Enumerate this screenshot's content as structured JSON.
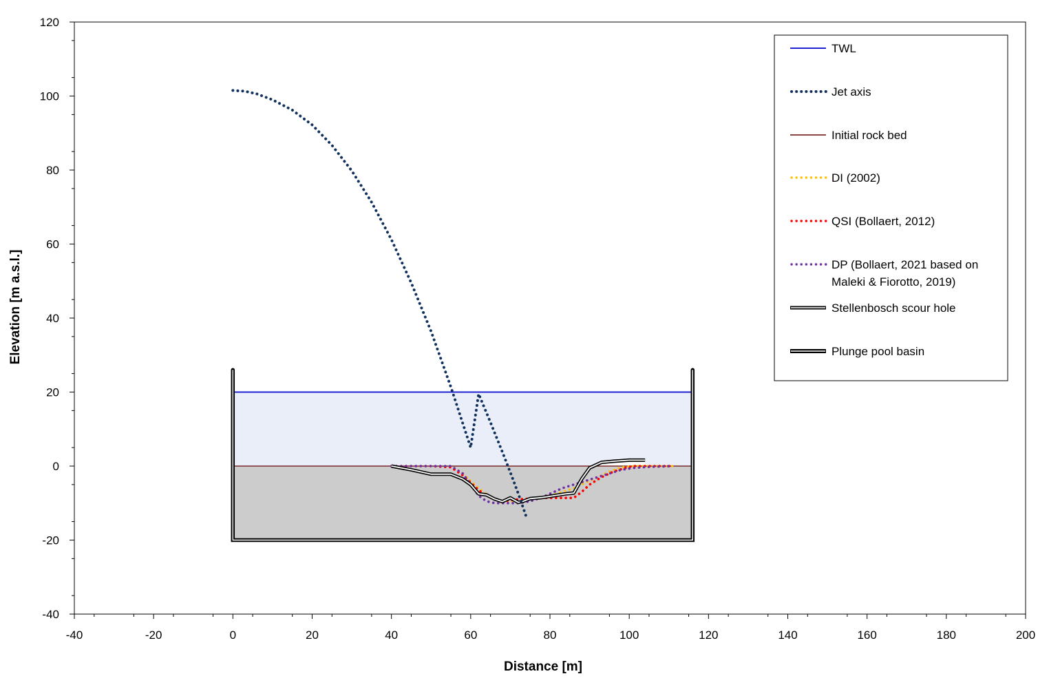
{
  "chart_data": {
    "type": "line",
    "xlabel": "Distance [m]",
    "ylabel": "Elevation [m a.s.l.]",
    "xlim": [
      -40,
      200
    ],
    "ylim": [
      -40,
      120
    ],
    "xticks": [
      -40,
      -20,
      0,
      20,
      40,
      60,
      80,
      100,
      120,
      140,
      160,
      180,
      200
    ],
    "yticks": [
      -40,
      -20,
      0,
      20,
      40,
      60,
      80,
      100,
      120
    ],
    "xtick_labels": [
      "-40",
      "-20",
      "0",
      "20",
      "40",
      "60",
      "80",
      "100",
      "120",
      "140",
      "160",
      "180",
      "200"
    ],
    "ytick_labels": [
      "-40",
      "-20",
      "0",
      "20",
      "40",
      "60",
      "80",
      "100",
      "120"
    ],
    "grid": false,
    "legend_position": "top-right",
    "legend": [
      {
        "key": "twl",
        "label": "TWL"
      },
      {
        "key": "jet",
        "label": "Jet axis"
      },
      {
        "key": "rock",
        "label": "Initial rock bed"
      },
      {
        "key": "di",
        "label": "DI (2002)"
      },
      {
        "key": "qsi",
        "label": "QSI (Bollaert, 2012)"
      },
      {
        "key": "dp",
        "label": "DP (Bollaert, 2021 based on",
        "label2": "Maleki & Fiorotto, 2019)"
      },
      {
        "key": "scour",
        "label": "Stellenbosch scour hole"
      },
      {
        "key": "basin",
        "label": "Plunge pool basin"
      }
    ],
    "colors": {
      "twl": "#0000cc",
      "jet": "#10305e",
      "rock": "#7a2a2a",
      "di": "#ffc000",
      "qsi": "#ff0000",
      "dp": "#7030a0",
      "scour": "#000000",
      "basin": "#000000",
      "water_fill": "#e9eef8",
      "rock_fill": "#cccccc"
    },
    "series": [
      {
        "key": "twl",
        "x": [
          0,
          116
        ],
        "y": [
          20,
          20
        ]
      },
      {
        "key": "jet",
        "x": [
          0,
          3,
          6,
          10,
          15,
          20,
          25,
          30,
          35,
          40,
          45,
          50,
          55,
          60,
          62,
          65,
          68,
          70,
          72,
          74
        ],
        "y": [
          101.5,
          101.3,
          100.6,
          99.0,
          96.2,
          92.2,
          86.7,
          79.8,
          71.3,
          61.2,
          49.5,
          36.4,
          21.4,
          5.0,
          19.5,
          11.8,
          3.8,
          -1.7,
          -7.4,
          -13.6
        ]
      },
      {
        "key": "rock",
        "x": [
          0,
          116
        ],
        "y": [
          0,
          0
        ]
      },
      {
        "key": "di",
        "x": [
          40,
          45,
          50,
          55,
          58,
          60,
          62,
          65,
          68,
          70,
          72,
          75,
          78,
          80,
          83,
          86,
          89,
          92,
          95,
          98,
          101,
          105,
          111
        ],
        "y": [
          0,
          0,
          0,
          -0.3,
          -2,
          -4,
          -6,
          -8.5,
          -9.5,
          -9.5,
          -9.2,
          -9,
          -8.5,
          -8,
          -7,
          -6,
          -4.5,
          -3,
          -1.5,
          -0.3,
          0,
          0,
          0
        ]
      },
      {
        "key": "qsi",
        "x": [
          40,
          45,
          50,
          55,
          58,
          60,
          62,
          64,
          66,
          68,
          70,
          72,
          75,
          78,
          80,
          83,
          86,
          88,
          90,
          93,
          96,
          99,
          101,
          105,
          111
        ],
        "y": [
          0,
          0,
          0,
          -0.3,
          -2.5,
          -4.5,
          -6.5,
          -8,
          -9,
          -9.5,
          -9.2,
          -9,
          -8.8,
          -8.6,
          -8.6,
          -8.6,
          -8.6,
          -7,
          -5,
          -3,
          -1.5,
          -0.5,
          0,
          0,
          0
        ]
      },
      {
        "key": "dp",
        "x": [
          40,
          45,
          50,
          55,
          58,
          60,
          62,
          64,
          66,
          68,
          70,
          72,
          75,
          78,
          80,
          83,
          86,
          89,
          92,
          95,
          98,
          101,
          105,
          111
        ],
        "y": [
          0,
          0,
          0,
          0,
          -2,
          -5,
          -8,
          -9.5,
          -10,
          -10,
          -10,
          -10,
          -9.5,
          -8.5,
          -7.5,
          -6,
          -5,
          -4,
          -3,
          -2,
          -1,
          -0.5,
          -0.2,
          0
        ]
      },
      {
        "key": "scour",
        "x": [
          40,
          45,
          50,
          55,
          58,
          60,
          62,
          64,
          66,
          68,
          70,
          72,
          73,
          75,
          78,
          81,
          84,
          86,
          88,
          90,
          93,
          96,
          100,
          104
        ],
        "y": [
          0,
          -1,
          -2.2,
          -2.2,
          -3.5,
          -5,
          -7.5,
          -7.8,
          -8.9,
          -9.6,
          -8.6,
          -9.8,
          -9.6,
          -8.8,
          -8.5,
          -8,
          -7.5,
          -7.3,
          -3.5,
          -0.5,
          1,
          1.3,
          1.6,
          1.6
        ]
      },
      {
        "key": "basin",
        "x": [
          0,
          0,
          116,
          116
        ],
        "y": [
          26,
          -20,
          -20,
          26
        ]
      }
    ],
    "regions": {
      "water": {
        "x": [
          0,
          116
        ],
        "y_top": 20,
        "y_bottom": 0
      },
      "rock": {
        "x": [
          0,
          116
        ],
        "y_top": 0,
        "y_bottom": -20
      }
    }
  }
}
